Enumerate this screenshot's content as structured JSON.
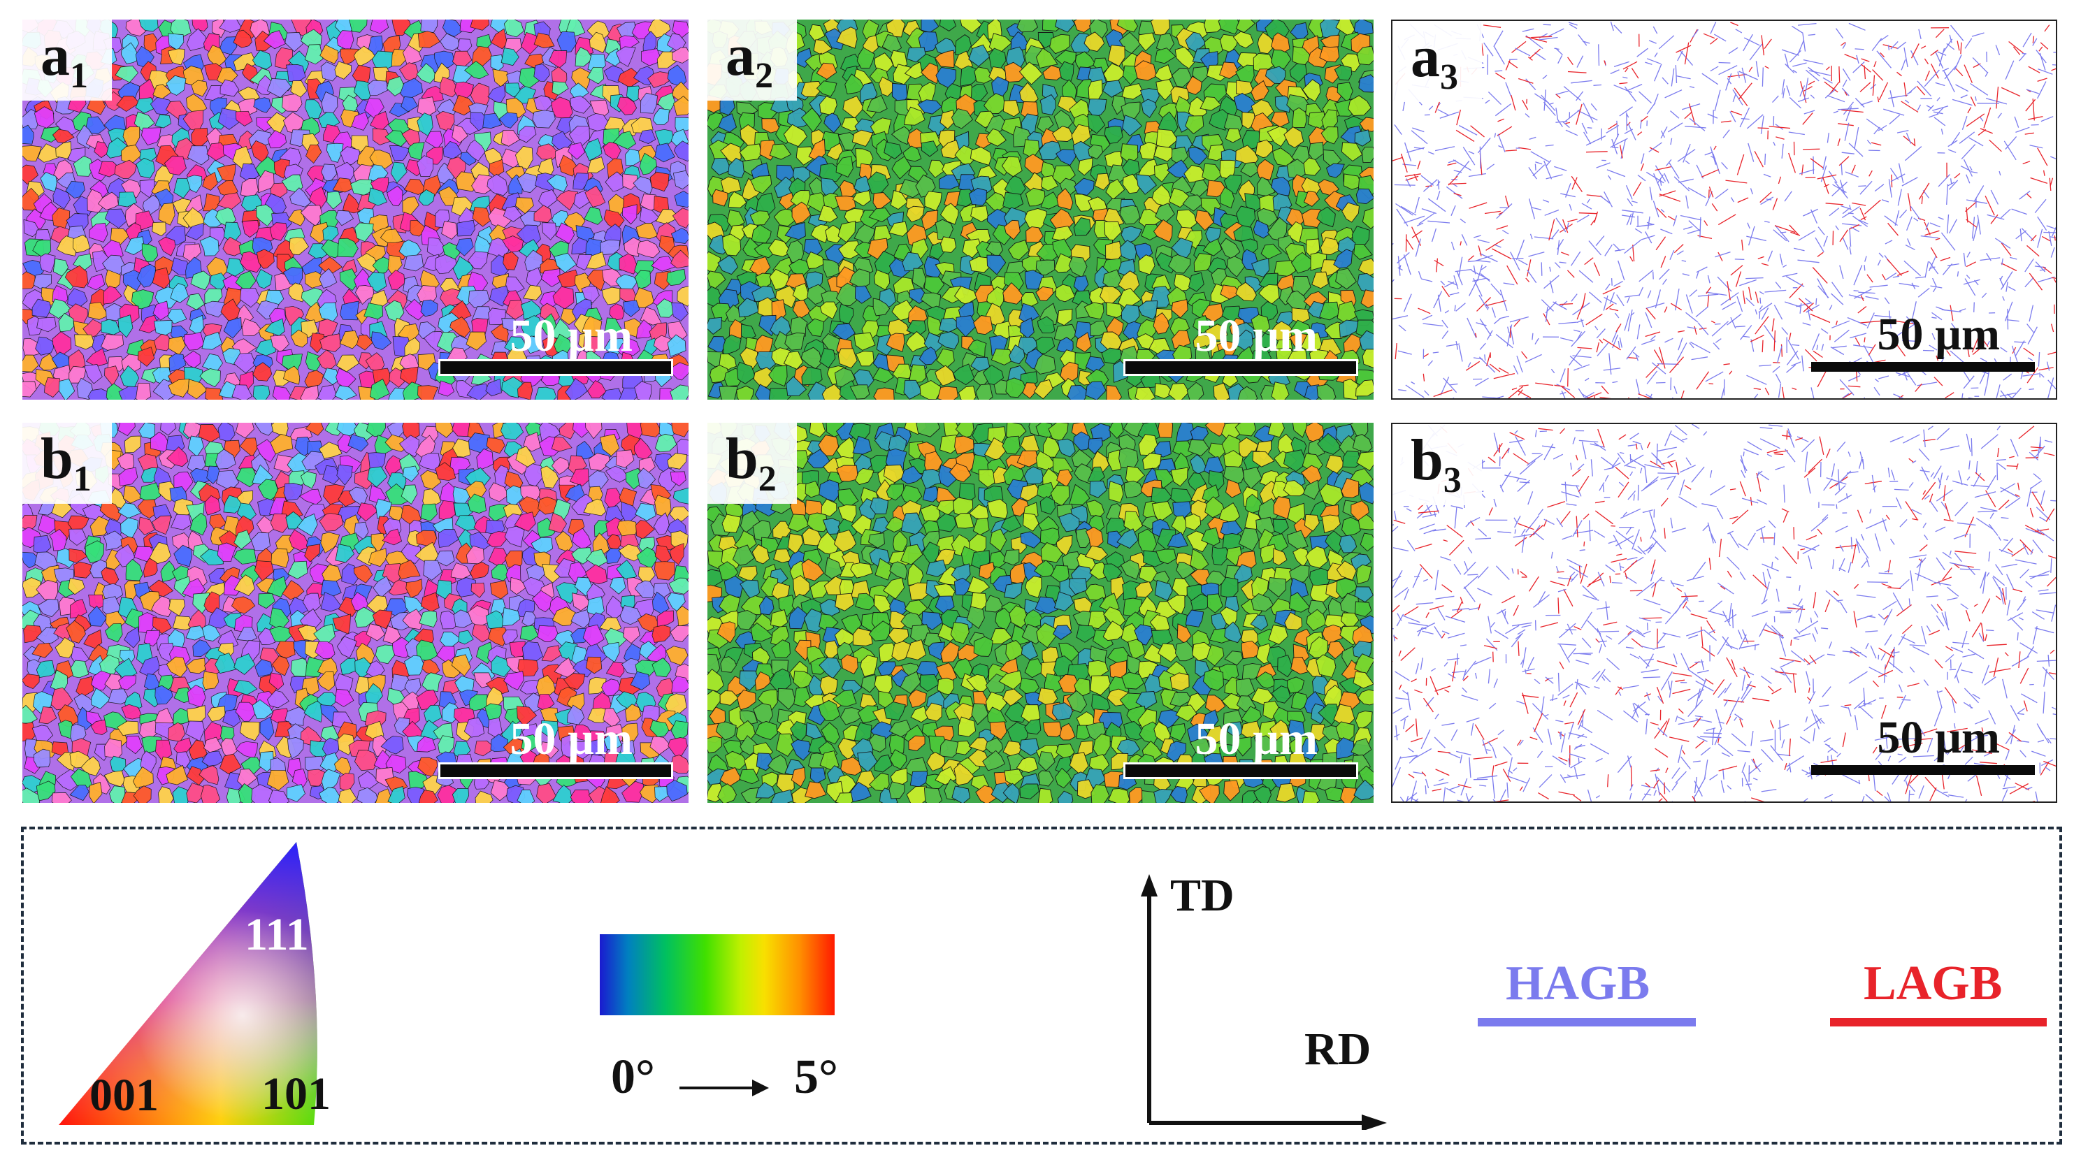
{
  "panels": [
    {
      "id": "a1",
      "letter": "a",
      "sub": "1",
      "map": "ipf",
      "seed": 11,
      "scale": "50 µm"
    },
    {
      "id": "a2",
      "letter": "a",
      "sub": "2",
      "map": "kam",
      "seed": 23,
      "scale": "50 µm"
    },
    {
      "id": "a3",
      "letter": "a",
      "sub": "3",
      "map": "gb",
      "seed": 37,
      "scale": "50 µm"
    },
    {
      "id": "b1",
      "letter": "b",
      "sub": "1",
      "map": "ipf",
      "seed": 41,
      "scale": "50 µm"
    },
    {
      "id": "b2",
      "letter": "b",
      "sub": "2",
      "map": "kam",
      "seed": 53,
      "scale": "50 µm"
    },
    {
      "id": "b3",
      "letter": "b",
      "sub": "3",
      "map": "gb",
      "seed": 67,
      "scale": "50 µm"
    }
  ],
  "legend": {
    "ipf": {
      "pole_111": "111",
      "pole_001": "001",
      "pole_101": "101"
    },
    "kam": {
      "min_label": "0°",
      "max_label": "5°"
    },
    "axes": {
      "td": "TD",
      "rd": "RD"
    },
    "boundaries": {
      "hagb": "HAGB",
      "lagb": "LAGB"
    }
  },
  "colors": {
    "hagb": "#7b7bee",
    "lagb": "#e8232a",
    "frame": "#1f2d3d"
  }
}
